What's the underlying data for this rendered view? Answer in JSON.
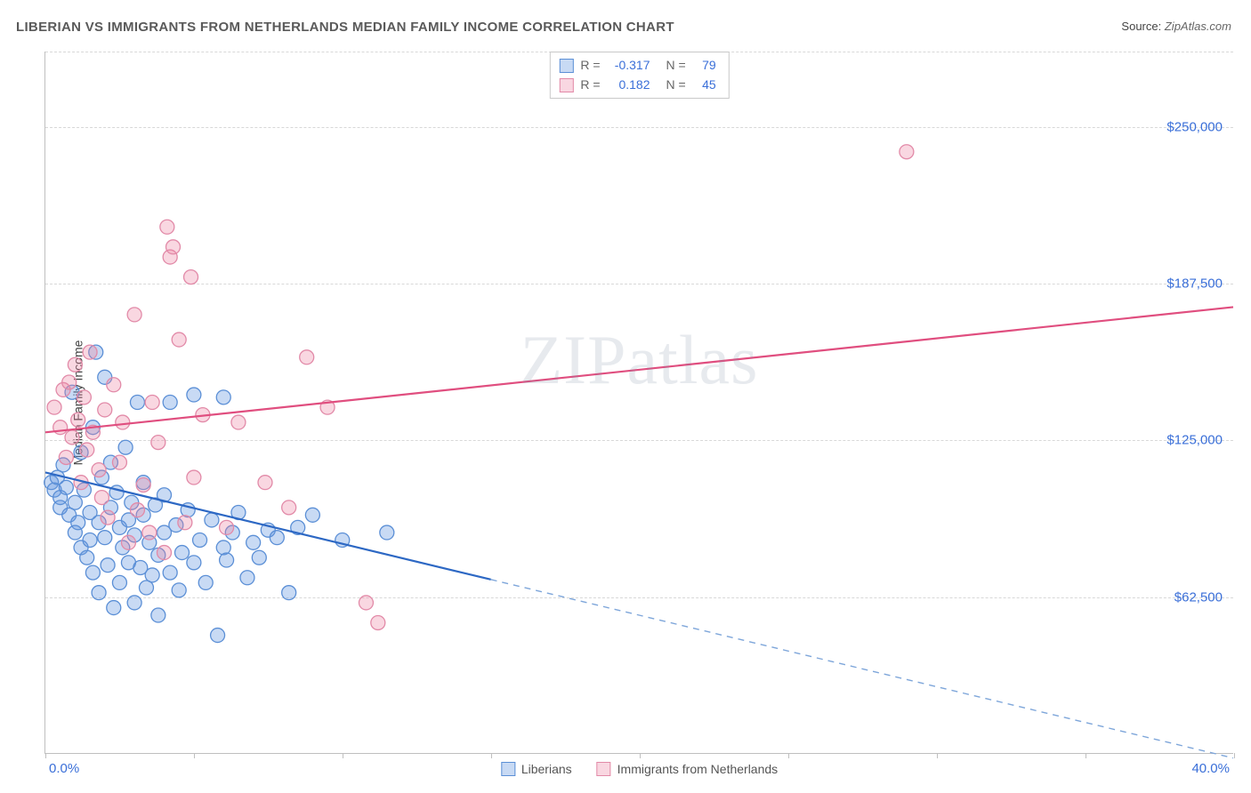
{
  "title": "LIBERIAN VS IMMIGRANTS FROM NETHERLANDS MEDIAN FAMILY INCOME CORRELATION CHART",
  "source_label": "Source:",
  "source_value": "ZipAtlas.com",
  "watermark": "ZIPatlas",
  "y_axis_title": "Median Family Income",
  "chart": {
    "type": "scatter",
    "background_color": "#ffffff",
    "grid_color": "#d8d8d8",
    "axis_color": "#bfbfbf",
    "xlim": [
      0,
      40
    ],
    "ylim": [
      0,
      280000
    ],
    "x_tick_positions_pct": [
      0,
      12.5,
      25,
      37.5,
      50,
      62.5,
      75,
      87.5,
      100
    ],
    "x_axis_left_label": "0.0%",
    "x_axis_right_label": "40.0%",
    "y_ticks": [
      {
        "value": 62500,
        "label": "$62,500"
      },
      {
        "value": 125000,
        "label": "$125,000"
      },
      {
        "value": 187500,
        "label": "$187,500"
      },
      {
        "value": 250000,
        "label": "$250,000"
      }
    ],
    "tick_label_color": "#3a6fd8",
    "tick_label_fontsize": 15,
    "series": [
      {
        "name": "Liberians",
        "fill_color": "rgba(96,150,224,0.35)",
        "stroke_color": "#5b8fd6",
        "line_color": "#2d68c4",
        "line_solid_end_x": 15,
        "dash_color": "#7ea6da",
        "R": "-0.317",
        "N": "79",
        "regression": {
          "x1": 0,
          "y1": 112000,
          "x2": 40,
          "y2": -2000
        },
        "points": [
          [
            0.2,
            108000
          ],
          [
            0.3,
            105000
          ],
          [
            0.4,
            110000
          ],
          [
            0.5,
            98000
          ],
          [
            0.5,
            102000
          ],
          [
            0.6,
            115000
          ],
          [
            0.7,
            106000
          ],
          [
            0.8,
            95000
          ],
          [
            0.9,
            144000
          ],
          [
            1.0,
            100000
          ],
          [
            1.0,
            88000
          ],
          [
            1.1,
            92000
          ],
          [
            1.2,
            120000
          ],
          [
            1.2,
            82000
          ],
          [
            1.3,
            105000
          ],
          [
            1.4,
            78000
          ],
          [
            1.5,
            96000
          ],
          [
            1.5,
            85000
          ],
          [
            1.6,
            72000
          ],
          [
            1.6,
            130000
          ],
          [
            1.7,
            160000
          ],
          [
            1.8,
            92000
          ],
          [
            1.8,
            64000
          ],
          [
            1.9,
            110000
          ],
          [
            2.0,
            86000
          ],
          [
            2.0,
            150000
          ],
          [
            2.1,
            75000
          ],
          [
            2.2,
            98000
          ],
          [
            2.2,
            116000
          ],
          [
            2.3,
            58000
          ],
          [
            2.4,
            104000
          ],
          [
            2.5,
            90000
          ],
          [
            2.5,
            68000
          ],
          [
            2.6,
            82000
          ],
          [
            2.7,
            122000
          ],
          [
            2.8,
            93000
          ],
          [
            2.8,
            76000
          ],
          [
            2.9,
            100000
          ],
          [
            3.0,
            87000
          ],
          [
            3.0,
            60000
          ],
          [
            3.1,
            140000
          ],
          [
            3.2,
            74000
          ],
          [
            3.3,
            95000
          ],
          [
            3.3,
            108000
          ],
          [
            3.4,
            66000
          ],
          [
            3.5,
            84000
          ],
          [
            3.6,
            71000
          ],
          [
            3.7,
            99000
          ],
          [
            3.8,
            79000
          ],
          [
            3.8,
            55000
          ],
          [
            4.0,
            88000
          ],
          [
            4.0,
            103000
          ],
          [
            4.2,
            140000
          ],
          [
            4.2,
            72000
          ],
          [
            4.4,
            91000
          ],
          [
            4.5,
            65000
          ],
          [
            4.6,
            80000
          ],
          [
            4.8,
            97000
          ],
          [
            5.0,
            76000
          ],
          [
            5.0,
            143000
          ],
          [
            5.2,
            85000
          ],
          [
            5.4,
            68000
          ],
          [
            5.6,
            93000
          ],
          [
            5.8,
            47000
          ],
          [
            6.0,
            82000
          ],
          [
            6.0,
            142000
          ],
          [
            6.1,
            77000
          ],
          [
            6.3,
            88000
          ],
          [
            6.5,
            96000
          ],
          [
            6.8,
            70000
          ],
          [
            7.0,
            84000
          ],
          [
            7.2,
            78000
          ],
          [
            7.5,
            89000
          ],
          [
            7.8,
            86000
          ],
          [
            8.2,
            64000
          ],
          [
            8.5,
            90000
          ],
          [
            9.0,
            95000
          ],
          [
            10.0,
            85000
          ],
          [
            11.5,
            88000
          ]
        ]
      },
      {
        "name": "Immigrants from Netherlands",
        "fill_color": "rgba(236,131,162,0.32)",
        "stroke_color": "#e28aa8",
        "line_color": "#e04e7f",
        "R": "0.182",
        "N": "45",
        "regression": {
          "x1": 0,
          "y1": 128000,
          "x2": 40,
          "y2": 178000
        },
        "points": [
          [
            0.3,
            138000
          ],
          [
            0.5,
            130000
          ],
          [
            0.6,
            145000
          ],
          [
            0.7,
            118000
          ],
          [
            0.8,
            148000
          ],
          [
            0.9,
            126000
          ],
          [
            1.0,
            155000
          ],
          [
            1.1,
            133000
          ],
          [
            1.2,
            108000
          ],
          [
            1.3,
            142000
          ],
          [
            1.4,
            121000
          ],
          [
            1.5,
            160000
          ],
          [
            1.6,
            128000
          ],
          [
            1.8,
            113000
          ],
          [
            1.9,
            102000
          ],
          [
            2.0,
            137000
          ],
          [
            2.1,
            94000
          ],
          [
            2.3,
            147000
          ],
          [
            2.5,
            116000
          ],
          [
            2.6,
            132000
          ],
          [
            2.8,
            84000
          ],
          [
            3.0,
            175000
          ],
          [
            3.1,
            97000
          ],
          [
            3.3,
            107000
          ],
          [
            3.5,
            88000
          ],
          [
            3.6,
            140000
          ],
          [
            3.8,
            124000
          ],
          [
            4.0,
            80000
          ],
          [
            4.2,
            198000
          ],
          [
            4.5,
            165000
          ],
          [
            4.7,
            92000
          ],
          [
            5.0,
            110000
          ],
          [
            4.1,
            210000
          ],
          [
            4.3,
            202000
          ],
          [
            4.9,
            190000
          ],
          [
            5.3,
            135000
          ],
          [
            6.1,
            90000
          ],
          [
            6.5,
            132000
          ],
          [
            7.4,
            108000
          ],
          [
            8.2,
            98000
          ],
          [
            8.8,
            158000
          ],
          [
            9.5,
            138000
          ],
          [
            10.8,
            60000
          ],
          [
            11.2,
            52000
          ],
          [
            29.0,
            240000
          ]
        ]
      }
    ],
    "marker_radius": 8,
    "marker_stroke_width": 1.3,
    "line_width": 2.2
  },
  "legend_bottom": [
    {
      "label": "Liberians",
      "series_index": 0
    },
    {
      "label": "Immigrants from Netherlands",
      "series_index": 1
    }
  ]
}
